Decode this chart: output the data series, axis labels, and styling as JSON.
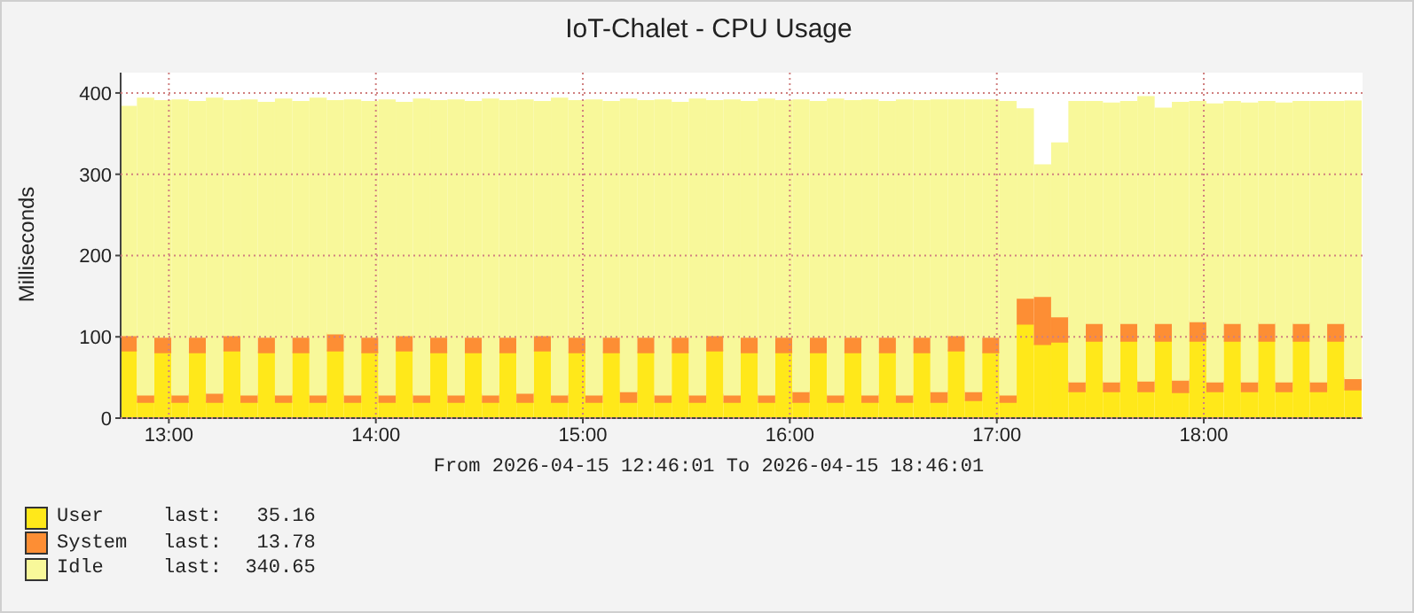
{
  "chart_data": {
    "type": "bar",
    "title": "IoT-Chalet - CPU Usage",
    "ylabel": "Milliseconds",
    "stacked": true,
    "x": [
      12.8083,
      12.8917,
      12.975,
      13.0583,
      13.1417,
      13.225,
      13.3083,
      13.3917,
      13.475,
      13.5583,
      13.6417,
      13.725,
      13.8083,
      13.8917,
      13.975,
      14.0583,
      14.1417,
      14.225,
      14.3083,
      14.3917,
      14.475,
      14.5583,
      14.6417,
      14.725,
      14.8083,
      14.8917,
      14.975,
      15.0583,
      15.1417,
      15.225,
      15.3083,
      15.3917,
      15.475,
      15.5583,
      15.6417,
      15.725,
      15.8083,
      15.8917,
      15.975,
      16.0583,
      16.1417,
      16.225,
      16.3083,
      16.3917,
      16.475,
      16.5583,
      16.6417,
      16.725,
      16.8083,
      16.8917,
      16.975,
      17.0583,
      17.1417,
      17.225,
      17.3083,
      17.3917,
      17.475,
      17.5583,
      17.6417,
      17.725,
      17.8083,
      17.8917,
      17.975,
      18.0583,
      18.1417,
      18.225,
      18.3083,
      18.3917,
      18.475,
      18.5583,
      18.6417,
      18.725
    ],
    "series": [
      {
        "name": "User",
        "color": "#ffe81a",
        "values": [
          83,
          20,
          81,
          20,
          81,
          20,
          83,
          20,
          81,
          20,
          81,
          20,
          83,
          20,
          81,
          20,
          83,
          20,
          81,
          20,
          81,
          20,
          81,
          20,
          83,
          20,
          81,
          20,
          81,
          20,
          81,
          20,
          81,
          20,
          83,
          20,
          81,
          20,
          81,
          20,
          81,
          20,
          81,
          20,
          81,
          20,
          81,
          20,
          83,
          22,
          81,
          20,
          116,
          91,
          94,
          33,
          95,
          33,
          95,
          33,
          95,
          32,
          95,
          33,
          95,
          33,
          95,
          33,
          95,
          33,
          95,
          35.16
        ]
      },
      {
        "name": "System",
        "color": "#fd8e34",
        "values": [
          19,
          9,
          19,
          9,
          19,
          11,
          19,
          9,
          19,
          9,
          19,
          9,
          21,
          9,
          19,
          9,
          19,
          9,
          19,
          9,
          19,
          9,
          19,
          11,
          19,
          9,
          19,
          9,
          19,
          13,
          19,
          9,
          19,
          9,
          19,
          9,
          19,
          9,
          19,
          13,
          19,
          9,
          19,
          9,
          19,
          9,
          19,
          13,
          19,
          11,
          19,
          9,
          32,
          59,
          31,
          12,
          22,
          12,
          22,
          13,
          22,
          15,
          24,
          12,
          22,
          12,
          22,
          12,
          22,
          12,
          22,
          13.78
        ]
      },
      {
        "name": "Idle",
        "color": "#f8f89a",
        "values": [
          281,
          364,
          290,
          362,
          289,
          362,
          288,
          362,
          288,
          363,
          289,
          364,
          286,
          362,
          289,
          362,
          286,
          363,
          290,
          362,
          289,
          363,
          290,
          360,
          287,
          364,
          290,
          362,
          289,
          359,
          290,
          362,
          288,
          363,
          288,
          362,
          289,
          363,
          290,
          358,
          289,
          363,
          290,
          362,
          289,
          362,
          290,
          358,
          289,
          358,
          291,
          360,
          232,
          161,
          213,
          344,
          272,
          342,
          272,
          349,
          264,
          341,
          270,
          341,
          272,
          342,
          272,
          342,
          272,
          344,
          272,
          340.65
        ]
      }
    ],
    "xlim": [
      12.767,
      18.767
    ],
    "xticks": [
      {
        "value": 13,
        "label": "13:00"
      },
      {
        "value": 14,
        "label": "14:00"
      },
      {
        "value": 15,
        "label": "15:00"
      },
      {
        "value": 16,
        "label": "16:00"
      },
      {
        "value": 17,
        "label": "17:00"
      },
      {
        "value": 18,
        "label": "18:00"
      }
    ],
    "ylim": [
      0,
      425
    ],
    "yticks": [
      0,
      100,
      200,
      300,
      400
    ],
    "grid": true,
    "legend": "bottom",
    "annotations": [
      "From 2026-04-15 12:46:01 To 2026-04-15 18:46:01",
      "last:   35.16",
      "last:   13.78",
      "last:  340.65"
    ]
  }
}
